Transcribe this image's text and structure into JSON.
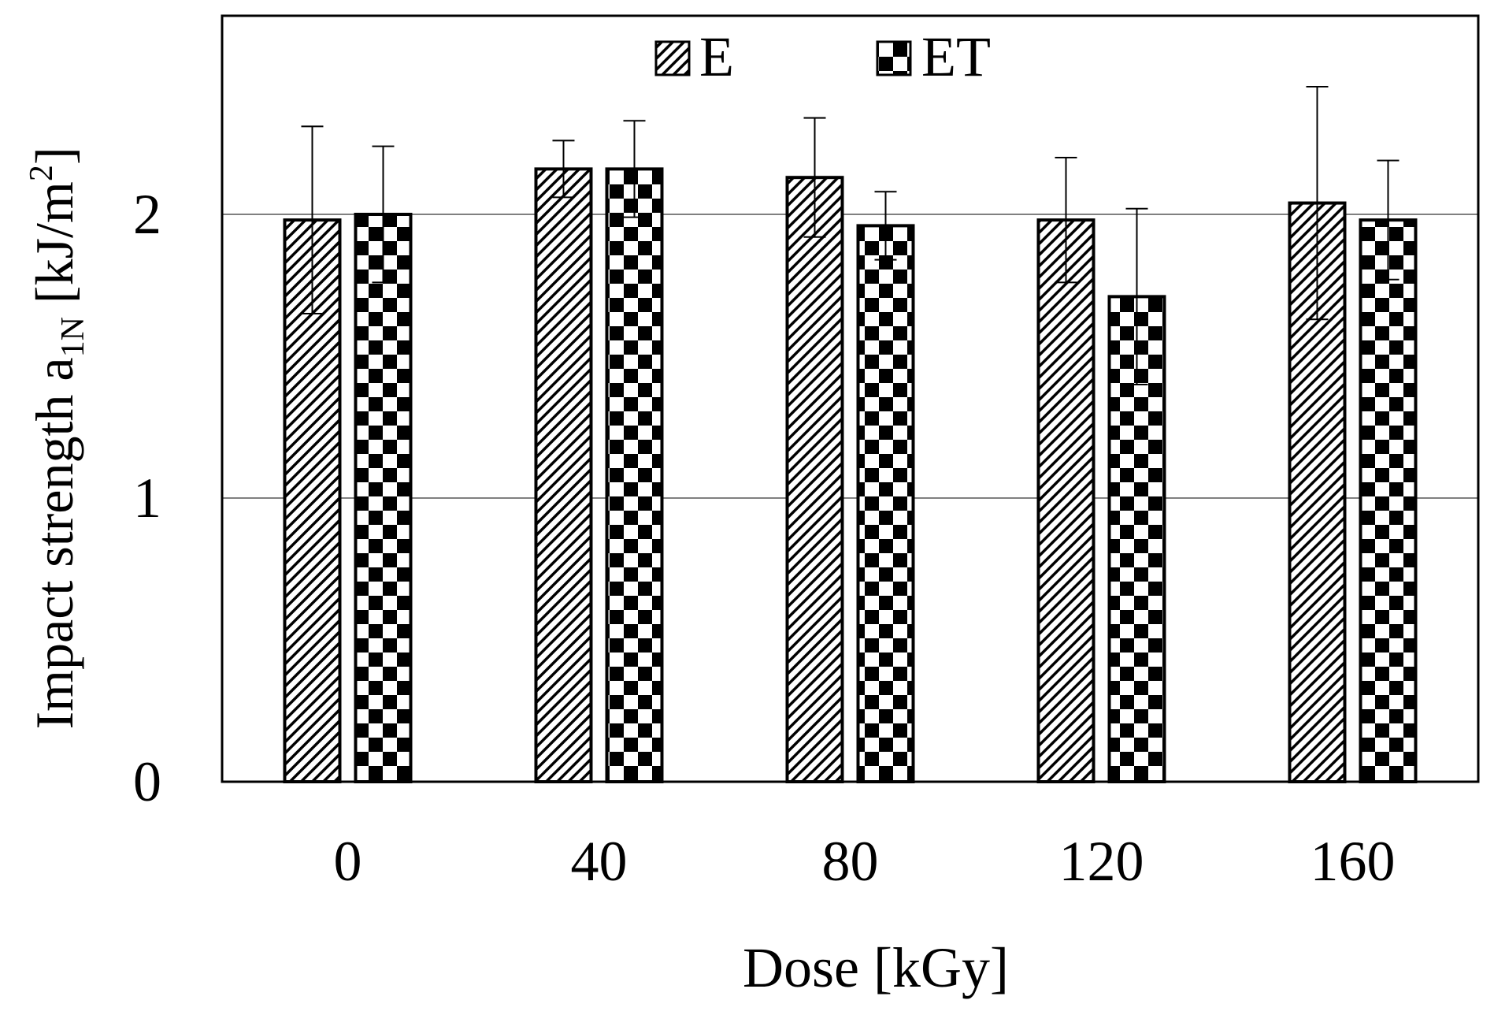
{
  "chart_data": {
    "type": "bar",
    "title": "",
    "xlabel": "Dose [kGy]",
    "ylabel_main": "Impact strength a",
    "ylabel_sub": "1N",
    "ylabel_unit_open": " [kJ/m",
    "ylabel_unit_sup": "2",
    "ylabel_unit_close": "]",
    "categories": [
      "0",
      "40",
      "80",
      "120",
      "160"
    ],
    "ylim": [
      0,
      2.7
    ],
    "yticks": [
      0,
      1,
      2
    ],
    "ytick_labels": [
      "0",
      "1",
      "2"
    ],
    "grid": true,
    "legend_position": "top-center",
    "series": [
      {
        "name": "E",
        "pattern": "diagonal-hatch",
        "values": [
          1.98,
          2.16,
          2.13,
          1.98,
          2.04
        ],
        "errors": [
          0.33,
          0.1,
          0.21,
          0.22,
          0.41
        ]
      },
      {
        "name": "ET",
        "pattern": "checkerboard",
        "values": [
          2.0,
          2.16,
          1.96,
          1.71,
          1.98
        ],
        "errors": [
          0.24,
          0.17,
          0.12,
          0.31,
          0.21
        ]
      }
    ],
    "colors": {
      "axis": "#000000",
      "grid": "#808080",
      "bar_fill": "#000000",
      "bar_bg": "#ffffff"
    }
  }
}
